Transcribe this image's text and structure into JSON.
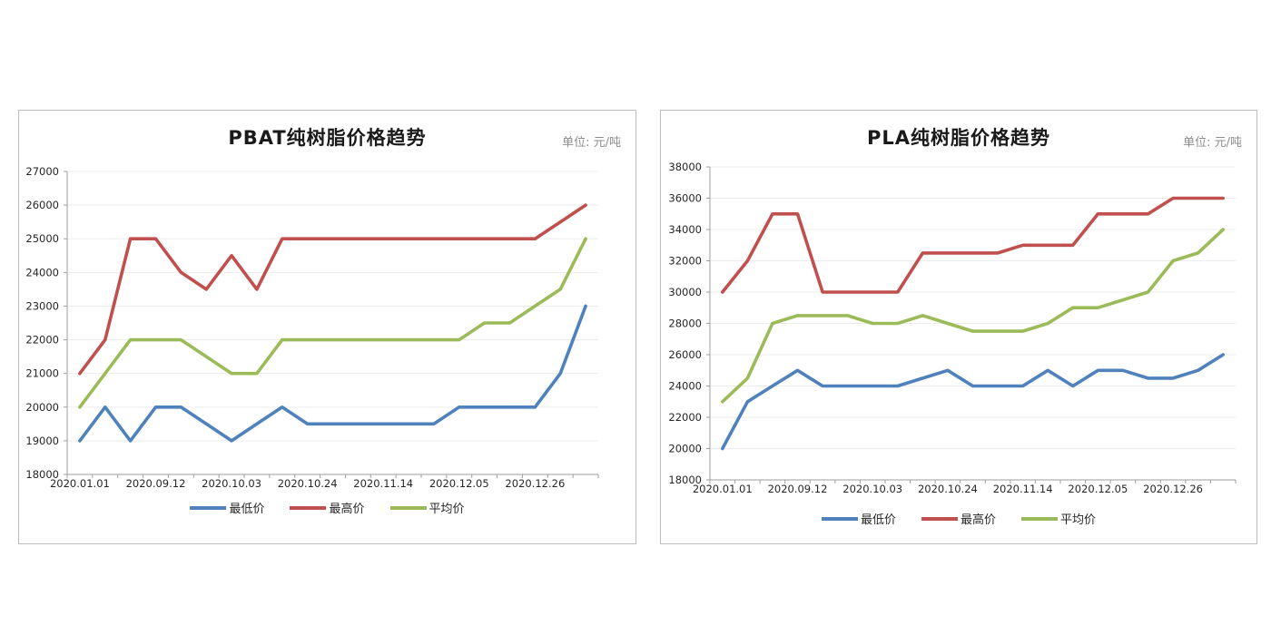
{
  "chart_data": [
    {
      "id": "pbat",
      "type": "line",
      "title": "PBAT纯树脂价格趋势",
      "unit_label": "单位: 元/吨",
      "x_tick_labels": [
        "2020.01.01",
        "2020.09.12",
        "2020.10.03",
        "2020.10.24",
        "2020.11.14",
        "2020.12.05",
        "2020.12.26"
      ],
      "x_label_indices": [
        0,
        3,
        6,
        9,
        12,
        15,
        18
      ],
      "n_points": 21,
      "ylim": [
        18000,
        27000
      ],
      "y_step": 1000,
      "y_tick_labels": [
        "18000",
        "19000",
        "20000",
        "21000",
        "22000",
        "23000",
        "24000",
        "25000",
        "26000",
        "27000"
      ],
      "grid": true,
      "legend_position": "bottom",
      "series": [
        {
          "name": "最低价",
          "color": "#4F81BD",
          "values": [
            19000,
            20000,
            19000,
            20000,
            20000,
            19500,
            19000,
            19500,
            20000,
            19500,
            19500,
            19500,
            19500,
            19500,
            19500,
            20000,
            20000,
            20000,
            20000,
            21000,
            23000
          ]
        },
        {
          "name": "最高价",
          "color": "#C0504D",
          "values": [
            21000,
            22000,
            25000,
            25000,
            24000,
            23500,
            24500,
            23500,
            25000,
            25000,
            25000,
            25000,
            25000,
            25000,
            25000,
            25000,
            25000,
            25000,
            25000,
            25500,
            26000
          ]
        },
        {
          "name": "平均价",
          "color": "#9BBB59",
          "values": [
            20000,
            21000,
            22000,
            22000,
            22000,
            21500,
            21000,
            21000,
            22000,
            22000,
            22000,
            22000,
            22000,
            22000,
            22000,
            22000,
            22500,
            22500,
            23000,
            23500,
            25000
          ]
        }
      ]
    },
    {
      "id": "pla",
      "type": "line",
      "title": "PLA纯树脂价格趋势",
      "unit_label": "单位: 元/吨",
      "x_tick_labels": [
        "2020.01.01",
        "2020.09.12",
        "2020.10.03",
        "2020.10.24",
        "2020.11.14",
        "2020.12.05",
        "2020.12.26"
      ],
      "x_label_indices": [
        0,
        3,
        6,
        9,
        12,
        15,
        18
      ],
      "n_points": 21,
      "ylim": [
        18000,
        38000
      ],
      "y_step": 2000,
      "y_tick_labels": [
        "18000",
        "20000",
        "22000",
        "24000",
        "26000",
        "28000",
        "30000",
        "32000",
        "34000",
        "36000",
        "38000"
      ],
      "grid": true,
      "legend_position": "bottom",
      "series": [
        {
          "name": "最低价",
          "color": "#4F81BD",
          "values": [
            20000,
            23000,
            24000,
            25000,
            24000,
            24000,
            24000,
            24000,
            24500,
            25000,
            24000,
            24000,
            24000,
            25000,
            24000,
            25000,
            25000,
            24500,
            24500,
            25000,
            26000
          ]
        },
        {
          "name": "最高价",
          "color": "#C0504D",
          "values": [
            30000,
            32000,
            35000,
            35000,
            30000,
            30000,
            30000,
            30000,
            32500,
            32500,
            32500,
            32500,
            33000,
            33000,
            33000,
            35000,
            35000,
            35000,
            36000,
            36000,
            36000
          ]
        },
        {
          "name": "平均价",
          "color": "#9BBB59",
          "values": [
            23000,
            24500,
            28000,
            28500,
            28500,
            28500,
            28000,
            28000,
            28500,
            28000,
            27500,
            27500,
            27500,
            28000,
            29000,
            29000,
            29500,
            30000,
            32000,
            32500,
            34000
          ]
        }
      ]
    }
  ]
}
